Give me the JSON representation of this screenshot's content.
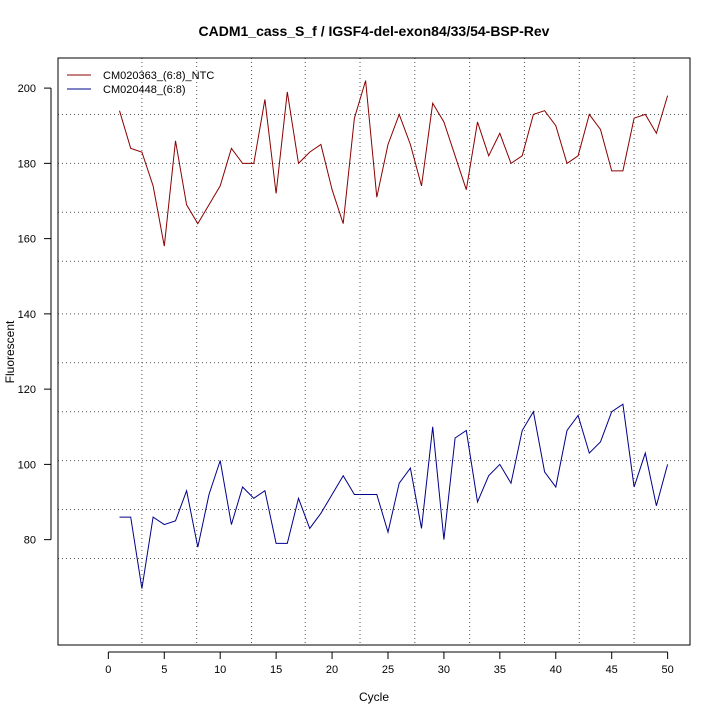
{
  "chart_data": {
    "type": "line",
    "title": "CADM1_cass_S_f / IGSF4-del-exon84/33/54-BSP-Rev",
    "xlabel": "Cycle",
    "ylabel": "Fluorescent",
    "xlim": [
      -4.5,
      52
    ],
    "ylim": [
      52,
      208
    ],
    "x_ticks": [
      0,
      5,
      10,
      15,
      20,
      25,
      30,
      35,
      40,
      45,
      50
    ],
    "y_ticks": [
      80,
      100,
      120,
      140,
      160,
      180,
      200
    ],
    "grid": "dotted",
    "v_grid": [
      3,
      7.9,
      12.8,
      17.6,
      22.5,
      27.4,
      32.3,
      37.2,
      42.1,
      47
    ],
    "h_grid": [
      75,
      88,
      101,
      114,
      127,
      140,
      154,
      167,
      180,
      193
    ],
    "legend_position": "top-left",
    "x": [
      1,
      2,
      3,
      4,
      5,
      6,
      7,
      8,
      9,
      10,
      11,
      12,
      13,
      14,
      15,
      16,
      17,
      18,
      19,
      20,
      21,
      22,
      23,
      24,
      25,
      26,
      27,
      28,
      29,
      30,
      31,
      32,
      33,
      34,
      35,
      36,
      37,
      38,
      39,
      40,
      41,
      42,
      43,
      44,
      45,
      46,
      47,
      48,
      49,
      50
    ],
    "series": [
      {
        "name": "CM020363_(6:8)_NTC",
        "color": "#8b0000",
        "values": [
          194,
          184,
          183,
          174,
          158,
          186,
          169,
          164,
          169,
          174,
          184,
          180,
          180,
          197,
          172,
          199,
          180,
          183,
          185,
          173,
          164,
          192,
          202,
          171,
          185,
          193,
          185,
          174,
          196,
          191,
          182,
          173,
          191,
          182,
          188,
          180,
          182,
          193,
          194,
          190,
          180,
          182,
          193,
          189,
          178,
          178,
          192,
          193,
          188,
          198
        ]
      },
      {
        "name": "CM020448_(6:8)",
        "color": "#00008b",
        "values": [
          86,
          86,
          67,
          86,
          84,
          85,
          93,
          78,
          92,
          101,
          84,
          94,
          91,
          93,
          79,
          79,
          91,
          83,
          87,
          92,
          97,
          92,
          92,
          92,
          82,
          95,
          99,
          83,
          110,
          80,
          107,
          109,
          90,
          97,
          100,
          95,
          109,
          114,
          98,
          94,
          109,
          113,
          103,
          106,
          114,
          116,
          94,
          103,
          89,
          100
        ]
      }
    ]
  }
}
